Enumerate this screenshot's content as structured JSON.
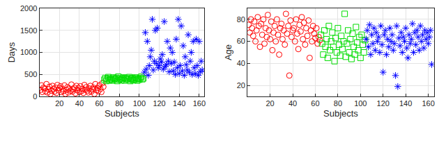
{
  "chart_data": [
    {
      "type": "scatter",
      "x_label": "Subjects",
      "y_label": "Days",
      "xlim": [
        0,
        165
      ],
      "xticks": [
        20,
        40,
        60,
        80,
        100,
        120,
        140,
        160
      ],
      "ylim": [
        0,
        2000
      ],
      "yticks": [
        0,
        500,
        1000,
        1500,
        2000
      ],
      "grid": true,
      "series": [
        {
          "color": "#ff0000",
          "marker": "circle",
          "x": [
            1,
            2,
            3,
            4,
            5,
            6,
            7,
            8,
            9,
            10,
            11,
            12,
            13,
            14,
            15,
            16,
            17,
            18,
            19,
            20,
            21,
            22,
            23,
            24,
            25,
            26,
            27,
            28,
            29,
            30,
            31,
            32,
            33,
            34,
            35,
            36,
            37,
            38,
            39,
            40,
            41,
            42,
            43,
            44,
            45,
            46,
            47,
            48,
            49,
            50,
            51,
            52,
            53,
            54,
            55,
            56,
            57,
            58,
            59,
            60,
            61,
            62,
            63,
            64
          ],
          "values": [
            150,
            250,
            100,
            200,
            180,
            120,
            280,
            90,
            160,
            220,
            60,
            130,
            240,
            170,
            110,
            200,
            80,
            260,
            140,
            190,
            230,
            100,
            170,
            120,
            250,
            60,
            150,
            210,
            90,
            180,
            130,
            270,
            110,
            160,
            200,
            70,
            240,
            140,
            190,
            100,
            230,
            120,
            170,
            80,
            260,
            150,
            210,
            130,
            90,
            180,
            240,
            110,
            160,
            200,
            60,
            280,
            140,
            190,
            120,
            250,
            170,
            100,
            300,
            220
          ]
        },
        {
          "color": "#00dd00",
          "marker": "square",
          "x": [
            65,
            66,
            67,
            68,
            69,
            70,
            71,
            72,
            73,
            74,
            75,
            76,
            77,
            78,
            79,
            80,
            81,
            82,
            83,
            84,
            85,
            86,
            87,
            88,
            89,
            90,
            91,
            92,
            93,
            94,
            95,
            96,
            97,
            98,
            99,
            100,
            101,
            102,
            103,
            104
          ],
          "values": [
            380,
            420,
            350,
            400,
            440,
            370,
            410,
            390,
            360,
            430,
            400,
            380,
            420,
            350,
            450,
            390,
            410,
            370,
            400,
            430,
            360,
            420,
            390,
            410,
            380,
            440,
            350,
            400,
            420,
            370,
            390,
            430,
            410,
            360,
            400,
            380,
            420,
            450,
            390,
            410
          ]
        },
        {
          "color": "#0000ff",
          "marker": "asterisk",
          "x": [
            105,
            106,
            107,
            108,
            109,
            110,
            111,
            112,
            113,
            114,
            115,
            116,
            117,
            118,
            119,
            120,
            121,
            122,
            123,
            124,
            125,
            126,
            127,
            128,
            129,
            130,
            131,
            132,
            133,
            134,
            135,
            136,
            137,
            138,
            139,
            140,
            141,
            142,
            143,
            144,
            145,
            146,
            147,
            148,
            149,
            150,
            151,
            152,
            153,
            154,
            155,
            156,
            157,
            158,
            159,
            160,
            161,
            162,
            163
          ],
          "values": [
            550,
            1450,
            620,
            1250,
            480,
            700,
            900,
            1050,
            1750,
            600,
            800,
            1500,
            750,
            1550,
            650,
            700,
            850,
            780,
            950,
            620,
            1700,
            680,
            720,
            1250,
            800,
            560,
            1100,
            750,
            1000,
            580,
            780,
            500,
            1300,
            650,
            1750,
            520,
            700,
            1600,
            580,
            1150,
            480,
            900,
            720,
            600,
            1400,
            550,
            800,
            1000,
            500,
            1250,
            650,
            520,
            1300,
            700,
            480,
            1250,
            560,
            800,
            600
          ]
        }
      ]
    },
    {
      "type": "scatter",
      "x_label": "Subjects",
      "y_label": "Age",
      "xlim": [
        0,
        165
      ],
      "xticks": [
        20,
        40,
        60,
        80,
        100,
        120,
        140,
        160
      ],
      "ylim": [
        10,
        90
      ],
      "yticks": [
        20,
        40,
        60,
        80
      ],
      "grid": true,
      "series": [
        {
          "color": "#ff0000",
          "marker": "circle",
          "x": [
            1,
            2,
            3,
            4,
            5,
            6,
            7,
            8,
            9,
            10,
            11,
            12,
            13,
            14,
            15,
            16,
            17,
            18,
            19,
            20,
            21,
            22,
            23,
            24,
            25,
            26,
            27,
            28,
            29,
            30,
            31,
            32,
            33,
            34,
            35,
            36,
            37,
            38,
            39,
            40,
            41,
            42,
            43,
            44,
            45,
            46,
            47,
            48,
            49,
            50,
            51,
            52,
            53,
            54,
            55,
            56,
            57,
            58,
            59,
            60,
            61,
            62,
            63,
            64
          ],
          "values": [
            75,
            68,
            80,
            72,
            65,
            78,
            60,
            70,
            82,
            74,
            55,
            76,
            66,
            80,
            58,
            72,
            64,
            84,
            70,
            62,
            78,
            52,
            68,
            74,
            60,
            80,
            66,
            48,
            72,
            76,
            62,
            70,
            57,
            85,
            67,
            74,
            29,
            79,
            64,
            70,
            72,
            60,
            80,
            67,
            53,
            75,
            69,
            82,
            62,
            77,
            57,
            72,
            65,
            79,
            45,
            70,
            60,
            74,
            67,
            63,
            72,
            58,
            64,
            61
          ]
        },
        {
          "color": "#00dd00",
          "marker": "square",
          "x": [
            65,
            66,
            67,
            68,
            69,
            70,
            71,
            72,
            73,
            74,
            75,
            76,
            77,
            78,
            79,
            80,
            81,
            82,
            83,
            84,
            85,
            86,
            87,
            88,
            89,
            90,
            91,
            92,
            93,
            94,
            95,
            96,
            97,
            98,
            99,
            100,
            101,
            102,
            103,
            104
          ],
          "values": [
            66,
            58,
            48,
            70,
            55,
            62,
            45,
            74,
            52,
            60,
            68,
            55,
            42,
            63,
            50,
            72,
            57,
            47,
            65,
            53,
            60,
            85,
            46,
            58,
            70,
            50,
            62,
            44,
            67,
            55,
            48,
            73,
            59,
            52,
            64,
            45,
            66,
            57,
            50,
            61
          ]
        },
        {
          "color": "#0000ff",
          "marker": "asterisk",
          "x": [
            105,
            106,
            107,
            108,
            109,
            110,
            111,
            112,
            113,
            114,
            115,
            116,
            117,
            118,
            119,
            120,
            121,
            122,
            123,
            124,
            125,
            126,
            127,
            128,
            129,
            130,
            131,
            132,
            133,
            134,
            135,
            136,
            137,
            138,
            139,
            140,
            141,
            142,
            143,
            144,
            145,
            146,
            147,
            148,
            149,
            150,
            151,
            152,
            153,
            154,
            155,
            156,
            157,
            158,
            159,
            160,
            161,
            162,
            163
          ],
          "values": [
            62,
            70,
            55,
            75,
            48,
            66,
            58,
            72,
            52,
            68,
            60,
            64,
            50,
            74,
            57,
            32,
            66,
            70,
            48,
            62,
            55,
            72,
            60,
            66,
            52,
            58,
            29,
            74,
            19,
            63,
            56,
            68,
            50,
            64,
            60,
            72,
            54,
            45,
            66,
            58,
            62,
            76,
            50,
            68,
            57,
            70,
            64,
            52,
            74,
            60,
            66,
            54,
            70,
            62,
            68,
            58,
            64,
            70,
            39
          ]
        }
      ]
    }
  ]
}
